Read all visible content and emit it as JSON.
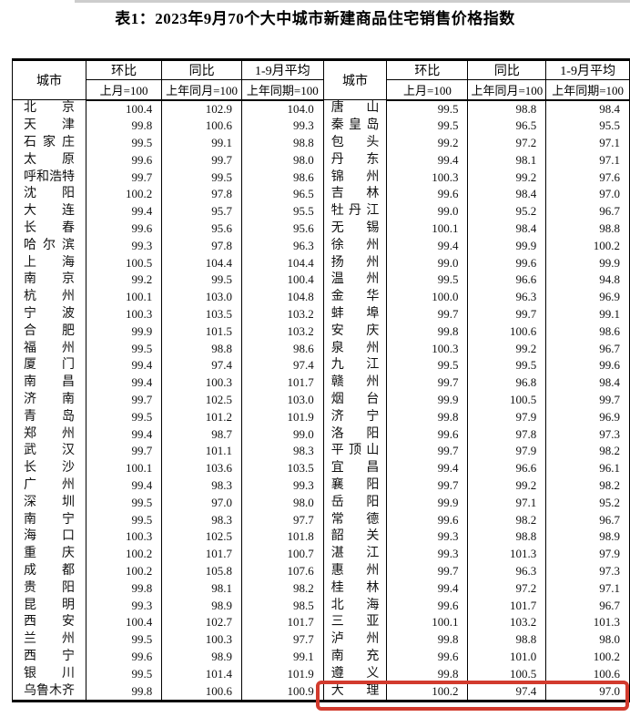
{
  "title": "表1：2023年9月70个大中城市新建商品住宅销售价格指数",
  "table": {
    "header": {
      "city": "城市",
      "mom": "环比",
      "mom_base": "上月=100",
      "yoy": "同比",
      "yoy_base": "上年同月=100",
      "avg": "1-9月平均",
      "avg_base": "上年同期=100"
    },
    "left_rows": [
      {
        "city": "北京",
        "mom": "100.4",
        "yoy": "102.9",
        "avg": "104.0"
      },
      {
        "city": "天津",
        "mom": "99.8",
        "yoy": "100.6",
        "avg": "99.3"
      },
      {
        "city": "石家庄",
        "mom": "99.5",
        "yoy": "99.1",
        "avg": "98.8"
      },
      {
        "city": "太原",
        "mom": "99.6",
        "yoy": "99.7",
        "avg": "98.0"
      },
      {
        "city": "呼和浩特",
        "mom": "99.7",
        "yoy": "99.5",
        "avg": "98.6"
      },
      {
        "city": "沈阳",
        "mom": "100.2",
        "yoy": "97.8",
        "avg": "96.5"
      },
      {
        "city": "大连",
        "mom": "99.4",
        "yoy": "95.7",
        "avg": "95.5"
      },
      {
        "city": "长春",
        "mom": "99.6",
        "yoy": "95.6",
        "avg": "95.6"
      },
      {
        "city": "哈尔滨",
        "mom": "99.3",
        "yoy": "97.8",
        "avg": "96.3"
      },
      {
        "city": "上海",
        "mom": "100.5",
        "yoy": "104.4",
        "avg": "104.4"
      },
      {
        "city": "南京",
        "mom": "99.2",
        "yoy": "99.5",
        "avg": "100.4"
      },
      {
        "city": "杭州",
        "mom": "100.1",
        "yoy": "103.0",
        "avg": "104.8"
      },
      {
        "city": "宁波",
        "mom": "100.3",
        "yoy": "103.5",
        "avg": "103.2"
      },
      {
        "city": "合肥",
        "mom": "99.9",
        "yoy": "101.5",
        "avg": "103.2"
      },
      {
        "city": "福州",
        "mom": "99.5",
        "yoy": "98.8",
        "avg": "98.6"
      },
      {
        "city": "厦门",
        "mom": "99.4",
        "yoy": "97.4",
        "avg": "97.4"
      },
      {
        "city": "南昌",
        "mom": "99.4",
        "yoy": "100.3",
        "avg": "101.7"
      },
      {
        "city": "济南",
        "mom": "99.7",
        "yoy": "102.5",
        "avg": "103.0"
      },
      {
        "city": "青岛",
        "mom": "99.5",
        "yoy": "101.2",
        "avg": "101.9"
      },
      {
        "city": "郑州",
        "mom": "99.4",
        "yoy": "98.7",
        "avg": "99.0"
      },
      {
        "city": "武汉",
        "mom": "99.7",
        "yoy": "101.1",
        "avg": "98.3"
      },
      {
        "city": "长沙",
        "mom": "100.1",
        "yoy": "103.6",
        "avg": "103.5"
      },
      {
        "city": "广州",
        "mom": "99.4",
        "yoy": "98.3",
        "avg": "99.3"
      },
      {
        "city": "深圳",
        "mom": "99.5",
        "yoy": "97.0",
        "avg": "98.0"
      },
      {
        "city": "南宁",
        "mom": "99.5",
        "yoy": "98.3",
        "avg": "97.7"
      },
      {
        "city": "海口",
        "mom": "100.3",
        "yoy": "102.5",
        "avg": "101.8"
      },
      {
        "city": "重庆",
        "mom": "100.2",
        "yoy": "101.7",
        "avg": "100.7"
      },
      {
        "city": "成都",
        "mom": "100.2",
        "yoy": "105.8",
        "avg": "107.6"
      },
      {
        "city": "贵阳",
        "mom": "99.8",
        "yoy": "98.1",
        "avg": "98.2"
      },
      {
        "city": "昆明",
        "mom": "99.3",
        "yoy": "98.9",
        "avg": "98.5"
      },
      {
        "city": "西安",
        "mom": "100.4",
        "yoy": "102.7",
        "avg": "101.7"
      },
      {
        "city": "兰州",
        "mom": "99.5",
        "yoy": "100.3",
        "avg": "97.7"
      },
      {
        "city": "西宁",
        "mom": "99.6",
        "yoy": "98.9",
        "avg": "99.1"
      },
      {
        "city": "银川",
        "mom": "99.5",
        "yoy": "101.4",
        "avg": "101.9"
      },
      {
        "city": "乌鲁木齐",
        "mom": "99.8",
        "yoy": "100.6",
        "avg": "100.9"
      }
    ],
    "right_rows": [
      {
        "city": "唐山",
        "mom": "99.5",
        "yoy": "98.8",
        "avg": "98.4"
      },
      {
        "city": "秦皇岛",
        "mom": "99.5",
        "yoy": "96.5",
        "avg": "95.5"
      },
      {
        "city": "包头",
        "mom": "99.2",
        "yoy": "97.2",
        "avg": "97.1"
      },
      {
        "city": "丹东",
        "mom": "99.4",
        "yoy": "98.1",
        "avg": "97.1"
      },
      {
        "city": "锦州",
        "mom": "100.3",
        "yoy": "99.2",
        "avg": "97.6"
      },
      {
        "city": "吉林",
        "mom": "99.6",
        "yoy": "98.4",
        "avg": "97.0"
      },
      {
        "city": "牡丹江",
        "mom": "99.0",
        "yoy": "95.2",
        "avg": "96.7"
      },
      {
        "city": "无锡",
        "mom": "100.1",
        "yoy": "98.4",
        "avg": "98.8"
      },
      {
        "city": "徐州",
        "mom": "99.4",
        "yoy": "99.9",
        "avg": "100.2"
      },
      {
        "city": "扬州",
        "mom": "99.0",
        "yoy": "99.6",
        "avg": "99.9"
      },
      {
        "city": "温州",
        "mom": "99.5",
        "yoy": "96.6",
        "avg": "94.8"
      },
      {
        "city": "金华",
        "mom": "100.0",
        "yoy": "96.3",
        "avg": "96.9"
      },
      {
        "city": "蚌埠",
        "mom": "99.7",
        "yoy": "99.7",
        "avg": "99.1"
      },
      {
        "city": "安庆",
        "mom": "99.8",
        "yoy": "100.6",
        "avg": "98.6"
      },
      {
        "city": "泉州",
        "mom": "100.3",
        "yoy": "99.2",
        "avg": "96.7"
      },
      {
        "city": "九江",
        "mom": "99.5",
        "yoy": "99.5",
        "avg": "99.6"
      },
      {
        "city": "赣州",
        "mom": "99.7",
        "yoy": "96.8",
        "avg": "98.4"
      },
      {
        "city": "烟台",
        "mom": "99.9",
        "yoy": "100.5",
        "avg": "99.7"
      },
      {
        "city": "济宁",
        "mom": "99.8",
        "yoy": "97.9",
        "avg": "96.9"
      },
      {
        "city": "洛阳",
        "mom": "99.6",
        "yoy": "97.8",
        "avg": "97.3"
      },
      {
        "city": "平顶山",
        "mom": "99.7",
        "yoy": "97.9",
        "avg": "98.2"
      },
      {
        "city": "宜昌",
        "mom": "99.4",
        "yoy": "96.6",
        "avg": "96.1"
      },
      {
        "city": "襄阳",
        "mom": "99.7",
        "yoy": "99.2",
        "avg": "98.2"
      },
      {
        "city": "岳阳",
        "mom": "99.9",
        "yoy": "97.1",
        "avg": "95.2"
      },
      {
        "city": "常德",
        "mom": "99.6",
        "yoy": "98.2",
        "avg": "96.7"
      },
      {
        "city": "韶关",
        "mom": "99.3",
        "yoy": "98.8",
        "avg": "98.9"
      },
      {
        "city": "湛江",
        "mom": "99.3",
        "yoy": "101.3",
        "avg": "97.9"
      },
      {
        "city": "惠州",
        "mom": "99.7",
        "yoy": "96.3",
        "avg": "97.3"
      },
      {
        "city": "桂林",
        "mom": "99.4",
        "yoy": "97.2",
        "avg": "97.1"
      },
      {
        "city": "北海",
        "mom": "99.6",
        "yoy": "101.7",
        "avg": "96.7"
      },
      {
        "city": "三亚",
        "mom": "100.1",
        "yoy": "103.2",
        "avg": "101.3"
      },
      {
        "city": "泸州",
        "mom": "99.8",
        "yoy": "98.8",
        "avg": "98.0"
      },
      {
        "city": "南充",
        "mom": "99.6",
        "yoy": "101.0",
        "avg": "100.2"
      },
      {
        "city": "遵义",
        "mom": "99.8",
        "yoy": "100.5",
        "avg": "100.6"
      },
      {
        "city": "大理",
        "mom": "100.2",
        "yoy": "97.4",
        "avg": "97.0"
      }
    ],
    "highlight": {
      "city": "大理",
      "color": "#d23b2e"
    }
  }
}
